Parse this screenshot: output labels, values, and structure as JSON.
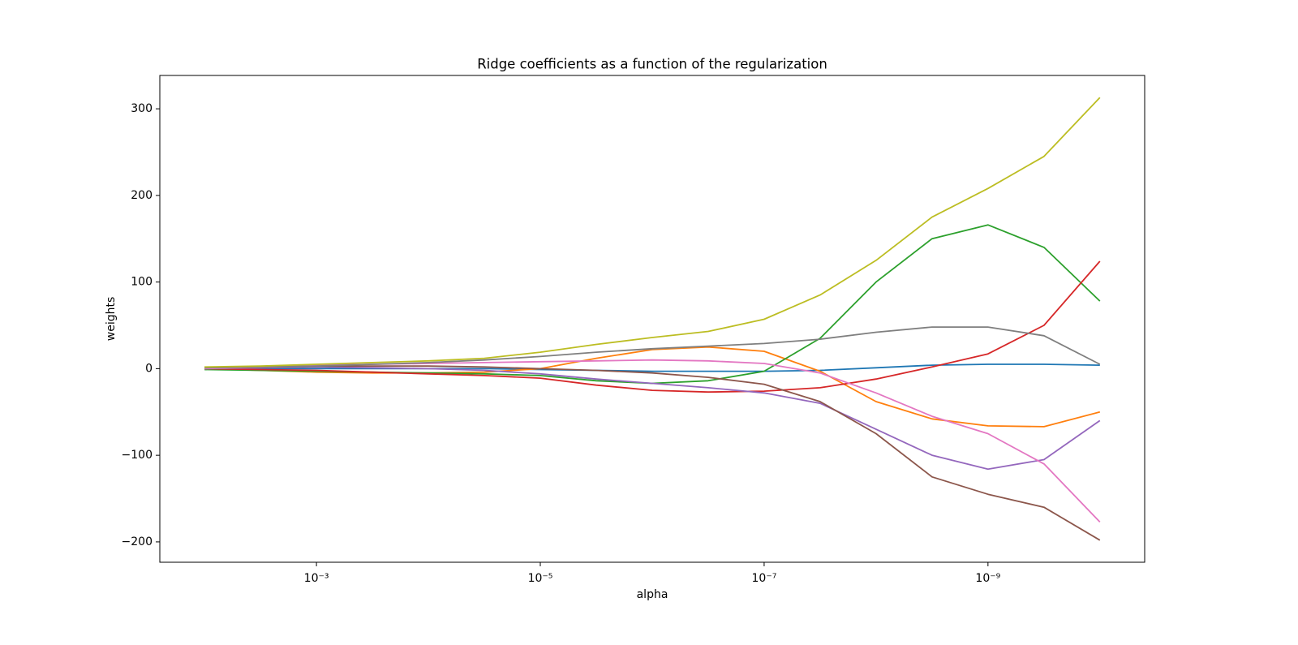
{
  "chart_data": {
    "type": "line",
    "title": "Ridge coefficients as a function of the regularization",
    "xlabel": "alpha",
    "ylabel": "weights",
    "xscale": "log",
    "x": [
      0.01,
      0.00316,
      0.001,
      0.000316,
      0.0001,
      3.16e-05,
      1e-05,
      3.16e-06,
      1e-06,
      3.16e-07,
      1e-07,
      3.16e-08,
      1e-08,
      3.16e-09,
      1e-09,
      3.16e-10,
      1e-10
    ],
    "xlim": [
      0.0251,
      3.98e-11
    ],
    "xticks": [
      {
        "value": 0.001,
        "label": "10⁻³"
      },
      {
        "value": 1e-05,
        "label": "10⁻⁵"
      },
      {
        "value": 1e-07,
        "label": "10⁻⁷"
      },
      {
        "value": 1e-09,
        "label": "10⁻⁹"
      }
    ],
    "ylim": [
      -223.5,
      338.5
    ],
    "yticks": [
      {
        "value": -200,
        "label": "−200"
      },
      {
        "value": -100,
        "label": "−100"
      },
      0,
      100,
      200,
      300
    ],
    "grid": false,
    "series": [
      {
        "color": "#1f77b4",
        "values": [
          0,
          0,
          0,
          0,
          0,
          0,
          -1,
          -2,
          -3,
          -3,
          -3,
          -2,
          1,
          4,
          5,
          5,
          4
        ]
      },
      {
        "color": "#ff7f0e",
        "values": [
          0,
          -2,
          -4,
          -5,
          -5,
          -4,
          0,
          12,
          22,
          25,
          20,
          -3,
          -38,
          -58,
          -66,
          -67,
          -50
        ]
      },
      {
        "color": "#2ca02c",
        "values": [
          -1,
          -2,
          -3,
          -4,
          -5,
          -6,
          -8,
          -14,
          -17,
          -14,
          -3,
          35,
          100,
          150,
          166,
          140,
          78
        ]
      },
      {
        "color": "#d62728",
        "values": [
          0,
          -1,
          -2,
          -4,
          -6,
          -8,
          -11,
          -19,
          -25,
          -27,
          -26,
          -22,
          -12,
          2,
          17,
          50,
          124
        ]
      },
      {
        "color": "#9467bd",
        "values": [
          0,
          1,
          2,
          1,
          0,
          -2,
          -6,
          -12,
          -17,
          -22,
          -28,
          -40,
          -70,
          -100,
          -116,
          -105,
          -60
        ]
      },
      {
        "color": "#8c564b",
        "values": [
          0,
          2,
          3,
          3,
          3,
          2,
          0,
          -2,
          -5,
          -10,
          -18,
          -38,
          -75,
          -125,
          -145,
          -160,
          -198
        ]
      },
      {
        "color": "#e377c2",
        "values": [
          0,
          2,
          4,
          5,
          6,
          7,
          8,
          9,
          10,
          9,
          6,
          -5,
          -28,
          -55,
          -75,
          -110,
          -177
        ]
      },
      {
        "color": "#7f7f7f",
        "values": [
          1,
          2,
          3,
          5,
          7,
          10,
          14,
          19,
          23,
          26,
          29,
          34,
          42,
          48,
          48,
          38,
          5
        ]
      },
      {
        "color": "#bcbd22",
        "values": [
          2,
          3,
          5,
          7,
          9,
          12,
          19,
          28,
          36,
          43,
          57,
          85,
          125,
          175,
          208,
          245,
          313
        ]
      }
    ]
  }
}
